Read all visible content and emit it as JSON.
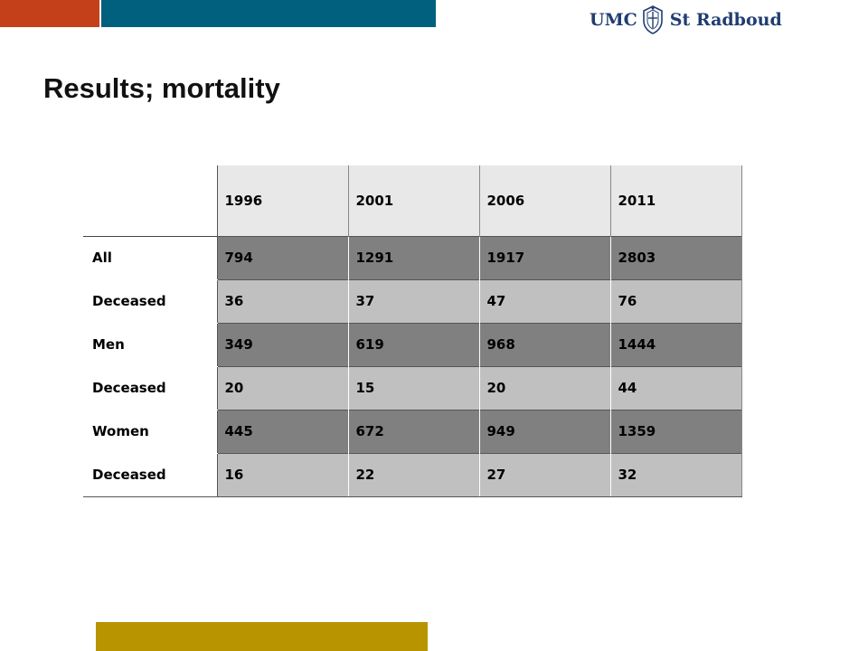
{
  "colors": {
    "orange_bar": "#c4401a",
    "teal_bar": "#00607d",
    "gold_bar": "#b89400",
    "logo_text": "#1f3d73"
  },
  "logo": {
    "left_text": "UMC",
    "right_text": "St Radboud",
    "icon": "shield-crest-icon"
  },
  "slide": {
    "title": "Results; mortality"
  },
  "table": {
    "columns": [
      "1996",
      "2001",
      "2006",
      "2011"
    ],
    "rows": [
      {
        "label": "All",
        "values": [
          "794",
          "1291",
          "1917",
          "2803"
        ],
        "shade": "dark"
      },
      {
        "label": "Deceased",
        "values": [
          "36",
          "37",
          "47",
          "76"
        ],
        "shade": "light"
      },
      {
        "label": "Men",
        "values": [
          "349",
          "619",
          "968",
          "1444"
        ],
        "shade": "dark"
      },
      {
        "label": "Deceased",
        "values": [
          "20",
          "15",
          "20",
          "44"
        ],
        "shade": "light"
      },
      {
        "label": "Women",
        "values": [
          "445",
          "672",
          "949",
          "1359"
        ],
        "shade": "dark"
      },
      {
        "label": "Deceased",
        "values": [
          "16",
          "22",
          "27",
          "32"
        ],
        "shade": "light"
      }
    ]
  }
}
